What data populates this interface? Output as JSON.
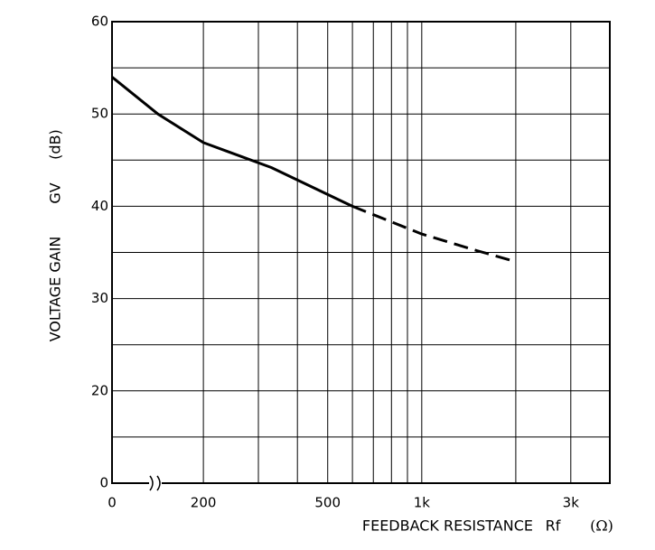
{
  "chart_data": {
    "type": "line",
    "ylabel": "VOLTAGE GAIN",
    "ylabel_symbol": "GV",
    "ylabel_unit": "(dB)",
    "xlabel": "FEEDBACK RESISTANCE",
    "xlabel_symbol": "Rf",
    "xlabel_unit": "(Ω)",
    "x_log": true,
    "xlim": [
      102,
      4000
    ],
    "xticks": [
      {
        "value": 200,
        "label": "200"
      },
      {
        "value": 500,
        "label": "500"
      },
      {
        "value": 1000,
        "label": "1k"
      },
      {
        "value": 3000,
        "label": "3k"
      }
    ],
    "x_grid": [
      200,
      300,
      400,
      500,
      600,
      700,
      800,
      900,
      1000,
      2000,
      3000
    ],
    "x_origin_label": "0",
    "ylim": [
      10,
      60
    ],
    "yticks": [
      20,
      30,
      40,
      50,
      60
    ],
    "y_grid": [
      15,
      20,
      25,
      30,
      35,
      40,
      45,
      50,
      55
    ],
    "y_origin_label": "0",
    "grid": true,
    "series": [
      {
        "style": "solid",
        "color": "#000000",
        "x": [
          102,
          143,
          200,
          330,
          600
        ],
        "values": [
          54,
          50,
          46.9,
          44.2,
          40
        ]
      },
      {
        "style": "dashed",
        "color": "#000000",
        "x": [
          600,
          1000,
          1500,
          2000
        ],
        "values": [
          40,
          37,
          35.2,
          34
        ]
      }
    ]
  }
}
